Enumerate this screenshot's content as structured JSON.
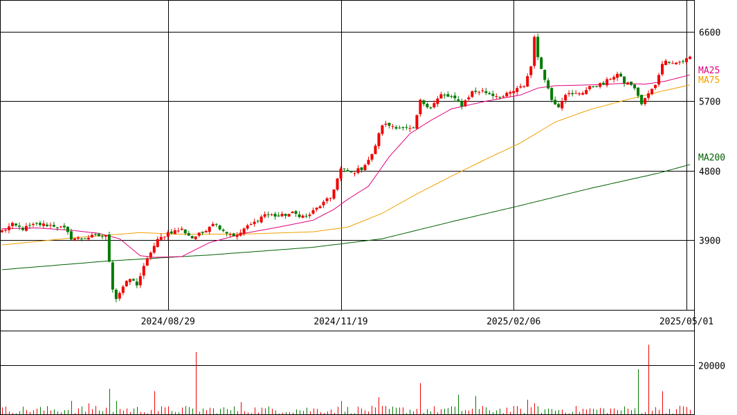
{
  "chart_data": {
    "type": "candlestick",
    "price_axis": {
      "ticks": [
        3900,
        4800,
        5700,
        6600
      ],
      "tick_labels": [
        "3900",
        "4800",
        "5700",
        "6600"
      ],
      "range": [
        3000,
        7000
      ]
    },
    "volume_axis": {
      "ticks": [
        20000
      ],
      "tick_labels": [
        "20000"
      ],
      "range": [
        0,
        34000
      ]
    },
    "x_axis": {
      "labels": [
        "2024/08/29",
        "2024/11/19",
        "2025/02/06",
        "2025/05/01"
      ],
      "label_bars": [
        48,
        98,
        148,
        198
      ],
      "bar_count": 200
    },
    "legend": {
      "ma25": {
        "label": "MA25",
        "color": "#e0007f"
      },
      "ma75": {
        "label": "MA75",
        "color": "#f0a000"
      },
      "ma200": {
        "label": "MA200",
        "color": "#005f00"
      }
    },
    "colors": {
      "up": "#f00000",
      "down": "#007a00",
      "grid": "#000000"
    },
    "anchors": [
      {
        "i": 0,
        "p": 4020
      },
      {
        "i": 3,
        "p": 4100
      },
      {
        "i": 6,
        "p": 4050
      },
      {
        "i": 10,
        "p": 4110
      },
      {
        "i": 15,
        "p": 4090
      },
      {
        "i": 18,
        "p": 4050
      },
      {
        "i": 20,
        "p": 3930
      },
      {
        "i": 23,
        "p": 3920
      },
      {
        "i": 27,
        "p": 3960
      },
      {
        "i": 30,
        "p": 3950
      },
      {
        "i": 31,
        "p": 3640
      },
      {
        "i": 32,
        "p": 3280
      },
      {
        "i": 33,
        "p": 3150
      },
      {
        "i": 35,
        "p": 3300
      },
      {
        "i": 37,
        "p": 3400
      },
      {
        "i": 39,
        "p": 3330
      },
      {
        "i": 41,
        "p": 3550
      },
      {
        "i": 43,
        "p": 3750
      },
      {
        "i": 45,
        "p": 3900
      },
      {
        "i": 48,
        "p": 4000
      },
      {
        "i": 52,
        "p": 4040
      },
      {
        "i": 55,
        "p": 3930
      },
      {
        "i": 58,
        "p": 4000
      },
      {
        "i": 61,
        "p": 4130
      },
      {
        "i": 65,
        "p": 4000
      },
      {
        "i": 68,
        "p": 3950
      },
      {
        "i": 70,
        "p": 4050
      },
      {
        "i": 73,
        "p": 4130
      },
      {
        "i": 76,
        "p": 4240
      },
      {
        "i": 80,
        "p": 4210
      },
      {
        "i": 84,
        "p": 4250
      },
      {
        "i": 88,
        "p": 4200
      },
      {
        "i": 92,
        "p": 4350
      },
      {
        "i": 95,
        "p": 4450
      },
      {
        "i": 98,
        "p": 4820
      },
      {
        "i": 101,
        "p": 4770
      },
      {
        "i": 104,
        "p": 4830
      },
      {
        "i": 107,
        "p": 5000
      },
      {
        "i": 110,
        "p": 5400
      },
      {
        "i": 113,
        "p": 5380
      },
      {
        "i": 116,
        "p": 5350
      },
      {
        "i": 119,
        "p": 5330
      },
      {
        "i": 121,
        "p": 5700
      },
      {
        "i": 124,
        "p": 5620
      },
      {
        "i": 127,
        "p": 5780
      },
      {
        "i": 130,
        "p": 5750
      },
      {
        "i": 133,
        "p": 5650
      },
      {
        "i": 136,
        "p": 5820
      },
      {
        "i": 139,
        "p": 5830
      },
      {
        "i": 142,
        "p": 5780
      },
      {
        "i": 145,
        "p": 5760
      },
      {
        "i": 148,
        "p": 5830
      },
      {
        "i": 151,
        "p": 5900
      },
      {
        "i": 153,
        "p": 6150
      },
      {
        "i": 154,
        "p": 6550
      },
      {
        "i": 155,
        "p": 6250
      },
      {
        "i": 157,
        "p": 6000
      },
      {
        "i": 159,
        "p": 5720
      },
      {
        "i": 161,
        "p": 5640
      },
      {
        "i": 163,
        "p": 5800
      },
      {
        "i": 165,
        "p": 5780
      },
      {
        "i": 168,
        "p": 5820
      },
      {
        "i": 171,
        "p": 5900
      },
      {
        "i": 174,
        "p": 5920
      },
      {
        "i": 176,
        "p": 6000
      },
      {
        "i": 178,
        "p": 6050
      },
      {
        "i": 180,
        "p": 5940
      },
      {
        "i": 182,
        "p": 5920
      },
      {
        "i": 184,
        "p": 5780
      },
      {
        "i": 185,
        "p": 5660
      },
      {
        "i": 187,
        "p": 5800
      },
      {
        "i": 189,
        "p": 5900
      },
      {
        "i": 191,
        "p": 6200
      },
      {
        "i": 193,
        "p": 6220
      },
      {
        "i": 195,
        "p": 6200
      },
      {
        "i": 197,
        "p": 6220
      },
      {
        "i": 199,
        "p": 6270
      }
    ],
    "ma25": [
      {
        "i": 0,
        "p": 4050
      },
      {
        "i": 10,
        "p": 4060
      },
      {
        "i": 20,
        "p": 4030
      },
      {
        "i": 28,
        "p": 3990
      },
      {
        "i": 34,
        "p": 3920
      },
      {
        "i": 40,
        "p": 3700
      },
      {
        "i": 44,
        "p": 3680
      },
      {
        "i": 52,
        "p": 3690
      },
      {
        "i": 60,
        "p": 3870
      },
      {
        "i": 70,
        "p": 3990
      },
      {
        "i": 80,
        "p": 4070
      },
      {
        "i": 90,
        "p": 4160
      },
      {
        "i": 96,
        "p": 4300
      },
      {
        "i": 100,
        "p": 4430
      },
      {
        "i": 106,
        "p": 4600
      },
      {
        "i": 112,
        "p": 4980
      },
      {
        "i": 118,
        "p": 5280
      },
      {
        "i": 124,
        "p": 5450
      },
      {
        "i": 130,
        "p": 5600
      },
      {
        "i": 140,
        "p": 5700
      },
      {
        "i": 150,
        "p": 5780
      },
      {
        "i": 155,
        "p": 5870
      },
      {
        "i": 160,
        "p": 5900
      },
      {
        "i": 170,
        "p": 5910
      },
      {
        "i": 180,
        "p": 5930
      },
      {
        "i": 186,
        "p": 5920
      },
      {
        "i": 192,
        "p": 5960
      },
      {
        "i": 199,
        "p": 6040
      }
    ],
    "ma75": [
      {
        "i": 0,
        "p": 3840
      },
      {
        "i": 20,
        "p": 3930
      },
      {
        "i": 40,
        "p": 4000
      },
      {
        "i": 50,
        "p": 3980
      },
      {
        "i": 70,
        "p": 3980
      },
      {
        "i": 90,
        "p": 4010
      },
      {
        "i": 100,
        "p": 4070
      },
      {
        "i": 110,
        "p": 4250
      },
      {
        "i": 120,
        "p": 4500
      },
      {
        "i": 130,
        "p": 4730
      },
      {
        "i": 140,
        "p": 4950
      },
      {
        "i": 150,
        "p": 5160
      },
      {
        "i": 160,
        "p": 5430
      },
      {
        "i": 170,
        "p": 5590
      },
      {
        "i": 180,
        "p": 5710
      },
      {
        "i": 190,
        "p": 5820
      },
      {
        "i": 199,
        "p": 5910
      }
    ],
    "ma200": [
      {
        "i": 0,
        "p": 3520
      },
      {
        "i": 30,
        "p": 3630
      },
      {
        "i": 60,
        "p": 3710
      },
      {
        "i": 90,
        "p": 3810
      },
      {
        "i": 110,
        "p": 3920
      },
      {
        "i": 130,
        "p": 4140
      },
      {
        "i": 150,
        "p": 4350
      },
      {
        "i": 170,
        "p": 4570
      },
      {
        "i": 190,
        "p": 4770
      },
      {
        "i": 199,
        "p": 4880
      }
    ],
    "volume_spikes": [
      {
        "i": 20,
        "v": 5500
      },
      {
        "i": 25,
        "v": 4500
      },
      {
        "i": 31,
        "v": 10500
      },
      {
        "i": 33,
        "v": 5500
      },
      {
        "i": 44,
        "v": 9500
      },
      {
        "i": 56,
        "v": 25500
      },
      {
        "i": 69,
        "v": 5000
      },
      {
        "i": 98,
        "v": 5500
      },
      {
        "i": 109,
        "v": 7000
      },
      {
        "i": 121,
        "v": 12800
      },
      {
        "i": 132,
        "v": 8000
      },
      {
        "i": 137,
        "v": 7500
      },
      {
        "i": 152,
        "v": 6000
      },
      {
        "i": 154,
        "v": 4500
      },
      {
        "i": 184,
        "v": 18500
      },
      {
        "i": 187,
        "v": 28500
      },
      {
        "i": 191,
        "v": 9500
      },
      {
        "i": 196,
        "v": 3500
      }
    ]
  }
}
